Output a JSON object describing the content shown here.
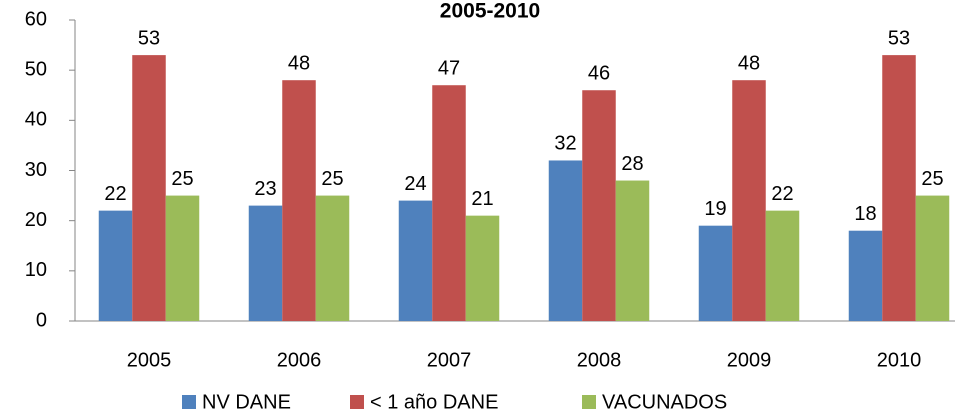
{
  "chart_data": {
    "type": "bar",
    "title": "2005-2010",
    "categories": [
      "2005",
      "2006",
      "2007",
      "2008",
      "2009",
      "2010"
    ],
    "series": [
      {
        "name": "NV DANE",
        "color": "#4f81bd",
        "values": [
          22,
          23,
          24,
          32,
          19,
          18
        ]
      },
      {
        "name": "< 1 año DANE",
        "color": "#c0504d",
        "values": [
          53,
          48,
          47,
          46,
          48,
          53
        ]
      },
      {
        "name": "VACUNADOS",
        "color": "#9bbb59",
        "values": [
          25,
          25,
          21,
          28,
          22,
          25
        ]
      }
    ],
    "ylim": [
      0,
      60
    ],
    "yticks": [
      0,
      10,
      20,
      30,
      40,
      50,
      60
    ],
    "grid": false,
    "legend": "bottom"
  }
}
